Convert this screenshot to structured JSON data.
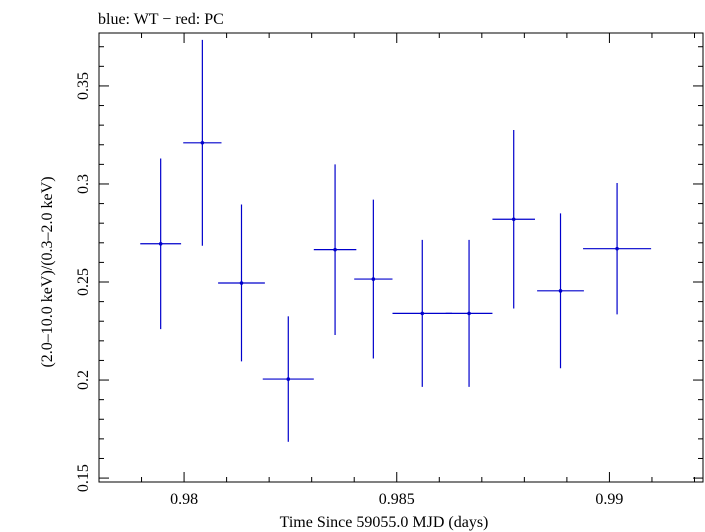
{
  "chart_data": {
    "type": "scatter",
    "title": "blue: WT − red: PC",
    "xlabel": "Time Since 59055.0 MJD (days)",
    "ylabel": "(2.0–10.0 keV)/(0.3–2.0 keV)",
    "xlim": [
      0.978,
      0.9922
    ],
    "ylim": [
      0.148,
      0.377
    ],
    "x_ticks": [
      0.98,
      0.985,
      0.99
    ],
    "x_tick_labels": [
      "0.98",
      "0.985",
      "0.99"
    ],
    "y_ticks": [
      0.15,
      0.2,
      0.25,
      0.3,
      0.35
    ],
    "y_tick_labels": [
      "0.15",
      "0.2",
      "0.25",
      "0.3",
      "0.35"
    ],
    "grid": false,
    "color": "#0000cc",
    "series": [
      {
        "points": [
          {
            "x": 0.97945,
            "xerr": 0.00048,
            "y": 0.2695,
            "yerr_low": 0.0435,
            "yerr_high": 0.0435
          },
          {
            "x": 0.98043,
            "xerr": 0.00045,
            "y": 0.321,
            "yerr_low": 0.0525,
            "yerr_high": 0.0525
          },
          {
            "x": 0.98135,
            "xerr": 0.00055,
            "y": 0.2495,
            "yerr_low": 0.04,
            "yerr_high": 0.04
          },
          {
            "x": 0.98245,
            "xerr": 0.0006,
            "y": 0.2005,
            "yerr_low": 0.032,
            "yerr_high": 0.032
          },
          {
            "x": 0.98355,
            "xerr": 0.0005,
            "y": 0.2665,
            "yerr_low": 0.0435,
            "yerr_high": 0.0435
          },
          {
            "x": 0.98445,
            "xerr": 0.00045,
            "y": 0.2515,
            "yerr_low": 0.0405,
            "yerr_high": 0.0405
          },
          {
            "x": 0.9856,
            "xerr": 0.0007,
            "y": 0.234,
            "yerr_low": 0.0375,
            "yerr_high": 0.0375
          },
          {
            "x": 0.9867,
            "xerr": 0.00055,
            "y": 0.234,
            "yerr_low": 0.0375,
            "yerr_high": 0.0375
          },
          {
            "x": 0.98775,
            "xerr": 0.0005,
            "y": 0.282,
            "yerr_low": 0.0455,
            "yerr_high": 0.0455
          },
          {
            "x": 0.98885,
            "xerr": 0.00055,
            "y": 0.2455,
            "yerr_low": 0.0395,
            "yerr_high": 0.0395
          },
          {
            "x": 0.99018,
            "xerr": 0.0008,
            "y": 0.267,
            "yerr_low": 0.0335,
            "yerr_high": 0.0335
          }
        ]
      }
    ]
  }
}
